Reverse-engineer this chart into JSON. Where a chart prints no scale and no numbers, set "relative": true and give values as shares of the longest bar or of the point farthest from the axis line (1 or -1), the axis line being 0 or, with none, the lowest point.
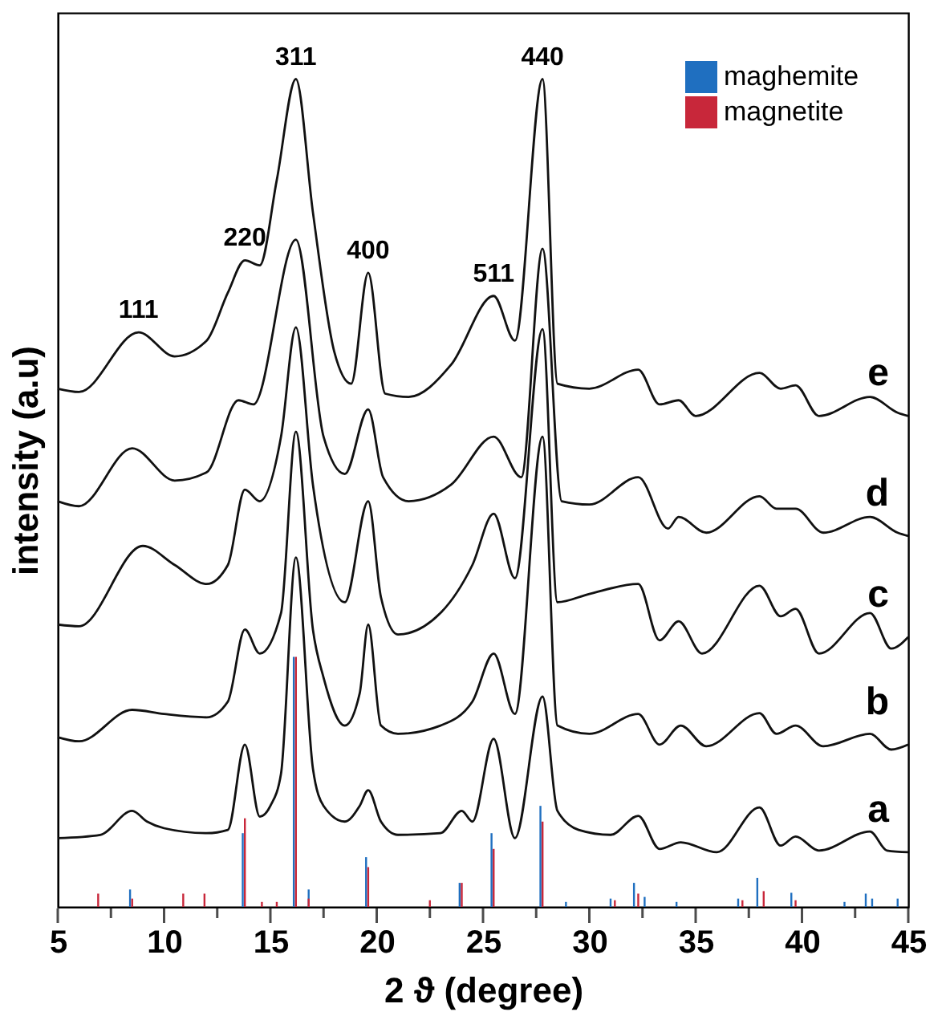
{
  "chart_data": {
    "type": "line",
    "relative": true,
    "xlabel": "2 ϑ (degree)",
    "ylabel": "intensity (a.u)",
    "xlim": [
      5,
      45
    ],
    "xticks": [
      5,
      {
        "value": 7.5,
        "label": null
      },
      10,
      {
        "value": 12.5,
        "label": null
      },
      15,
      {
        "value": 17.5,
        "label": null
      },
      20,
      {
        "value": 22.5,
        "label": null
      },
      25,
      {
        "value": 27.5,
        "label": null
      },
      30,
      {
        "value": 32.5,
        "label": null
      },
      35,
      {
        "value": 37.5,
        "label": null
      },
      40,
      {
        "value": 42.5,
        "label": null
      },
      45
    ],
    "grid": false,
    "legend": "top right",
    "tick_labels": "x",
    "marker": "none",
    "line_style": "solid",
    "series": [
      {
        "name": "a",
        "color": "#111111",
        "x": [
          5,
          7,
          8.5,
          9.2,
          10,
          12,
          13,
          13.8,
          14.5,
          15,
          15.5,
          16.2,
          17,
          17.5,
          18.5,
          19.2,
          19.6,
          20.2,
          21,
          23,
          24,
          24.5,
          25.5,
          26.5,
          27.8,
          28.5,
          29.5,
          31,
          32.3,
          33.3,
          34.3,
          36,
          38,
          39,
          39.7,
          40.8,
          43.2,
          44,
          45
        ],
        "values": [
          0.083,
          0.087,
          0.116,
          0.103,
          0.095,
          0.089,
          0.093,
          0.196,
          0.109,
          0.122,
          0.161,
          0.422,
          0.167,
          0.122,
          0.103,
          0.122,
          0.141,
          0.103,
          0.087,
          0.089,
          0.116,
          0.103,
          0.203,
          0.083,
          0.254,
          0.116,
          0.093,
          0.087,
          0.11,
          0.07,
          0.078,
          0.066,
          0.12,
          0.074,
          0.085,
          0.068,
          0.091,
          0.068,
          0.066
        ]
      },
      {
        "name": "b",
        "color": "#111111",
        "x": [
          5,
          6,
          8.5,
          10,
          12,
          13,
          13.8,
          14.5,
          15.5,
          16.2,
          17,
          17.5,
          18.5,
          19.2,
          19.6,
          20.2,
          21,
          23,
          24.5,
          25.5,
          26.5,
          27.8,
          28.5,
          30,
          32.3,
          33.3,
          34.3,
          35.5,
          38,
          38.8,
          39.7,
          41,
          43.2,
          44.2,
          45
        ],
        "values": [
          0.205,
          0.2,
          0.238,
          0.233,
          0.229,
          0.248,
          0.335,
          0.306,
          0.355,
          0.574,
          0.335,
          0.277,
          0.219,
          0.258,
          0.341,
          0.219,
          0.209,
          0.219,
          0.248,
          0.306,
          0.233,
          0.568,
          0.219,
          0.209,
          0.233,
          0.196,
          0.219,
          0.194,
          0.234,
          0.209,
          0.219,
          0.194,
          0.209,
          0.19,
          0.196
        ]
      },
      {
        "name": "c",
        "color": "#111111",
        "x": [
          5,
          6,
          9,
          10.5,
          12,
          13,
          13.8,
          14.5,
          15.5,
          16.2,
          17,
          18.5,
          19.6,
          20.2,
          21,
          23,
          24.5,
          25.5,
          26.5,
          27.8,
          28.5,
          30,
          32.3,
          33.3,
          34.2,
          35.3,
          38,
          39,
          39.7,
          40.8,
          43.2,
          44.2,
          45
        ],
        "values": [
          0.341,
          0.339,
          0.436,
          0.413,
          0.39,
          0.413,
          0.504,
          0.49,
          0.568,
          0.7,
          0.51,
          0.368,
          0.49,
          0.374,
          0.329,
          0.355,
          0.413,
          0.475,
          0.397,
          0.698,
          0.368,
          0.378,
          0.39,
          0.322,
          0.345,
          0.306,
          0.388,
          0.351,
          0.36,
          0.306,
          0.355,
          0.312,
          0.326
        ]
      },
      {
        "name": "d",
        "color": "#111111",
        "x": [
          5,
          6,
          8.5,
          10.5,
          12,
          13.5,
          14.2,
          16.2,
          17.5,
          18.5,
          19.6,
          20.3,
          21.5,
          23.5,
          25.5,
          26.8,
          27.8,
          28.7,
          30,
          32.3,
          33.7,
          34.2,
          35.5,
          38,
          38.8,
          39.7,
          41,
          43.2,
          44.5,
          45
        ],
        "values": [
          0.49,
          0.484,
          0.554,
          0.515,
          0.525,
          0.612,
          0.607,
          0.806,
          0.568,
          0.523,
          0.601,
          0.519,
          0.49,
          0.51,
          0.568,
          0.519,
          0.795,
          0.49,
          0.486,
          0.519,
          0.457,
          0.471,
          0.452,
          0.496,
          0.481,
          0.481,
          0.452,
          0.471,
          0.452,
          0.448
        ]
      },
      {
        "name": "e",
        "color": "#111111",
        "x": [
          5,
          6,
          8.8,
          10.5,
          12,
          13,
          13.8,
          14.5,
          15.3,
          16.2,
          17,
          18,
          18.8,
          19.6,
          20.4,
          21.5,
          23.5,
          25.5,
          26.5,
          27.8,
          28.5,
          30,
          32.3,
          33.3,
          34.2,
          35,
          38,
          39,
          39.7,
          40.8,
          43.2,
          44.5,
          45
        ],
        "values": [
          0.626,
          0.622,
          0.694,
          0.665,
          0.684,
          0.742,
          0.781,
          0.775,
          0.878,
          1,
          0.839,
          0.671,
          0.632,
          0.766,
          0.62,
          0.616,
          0.655,
          0.738,
          0.684,
          1,
          0.632,
          0.626,
          0.649,
          0.607,
          0.612,
          0.593,
          0.645,
          0.626,
          0.63,
          0.593,
          0.616,
          0.597,
          0.593
        ]
      },
      {
        "name": "maghemite",
        "type": "bar",
        "color": "#1f6fc0",
        "x": [
          8.4,
          13.7,
          16.1,
          16.8,
          19.5,
          23.9,
          25.4,
          27.7,
          28.9,
          31.0,
          32.1,
          32.6,
          34.1,
          37.0,
          37.9,
          39.5,
          42.0,
          43.0,
          43.3,
          44.5
        ],
        "values": [
          0.021,
          0.089,
          0.302,
          0.021,
          0.06,
          0.029,
          0.089,
          0.122,
          0.006,
          0.01,
          0.029,
          0.012,
          0.006,
          0.01,
          0.035,
          0.017,
          0.006,
          0.016,
          0.01,
          0.01
        ]
      },
      {
        "name": "magnetite",
        "type": "bar",
        "color": "#c8273a",
        "x": [
          6.9,
          8.5,
          10.9,
          11.9,
          13.8,
          14.6,
          15.3,
          16.2,
          16.8,
          19.6,
          22.5,
          24.0,
          25.5,
          27.8,
          31.2,
          32.3,
          37.2,
          38.2,
          39.7
        ],
        "values": [
          0.016,
          0.01,
          0.016,
          0.016,
          0.107,
          0.006,
          0.006,
          0.302,
          0.01,
          0.048,
          0.008,
          0.029,
          0.07,
          0.103,
          0.008,
          0.016,
          0.008,
          0.019,
          0.008
        ]
      }
    ],
    "annotations": [
      {
        "text": "111",
        "x": 8.8,
        "y": 0.694
      },
      {
        "text": "220",
        "x": 13.8,
        "y": 0.781
      },
      {
        "text": "311",
        "x": 16.2,
        "y": 1
      },
      {
        "text": "400",
        "x": 19.6,
        "y": 0.766
      },
      {
        "text": "511",
        "x": 25.5,
        "y": 0.738
      },
      {
        "text": "440",
        "x": 27.8,
        "y": 1
      }
    ]
  }
}
